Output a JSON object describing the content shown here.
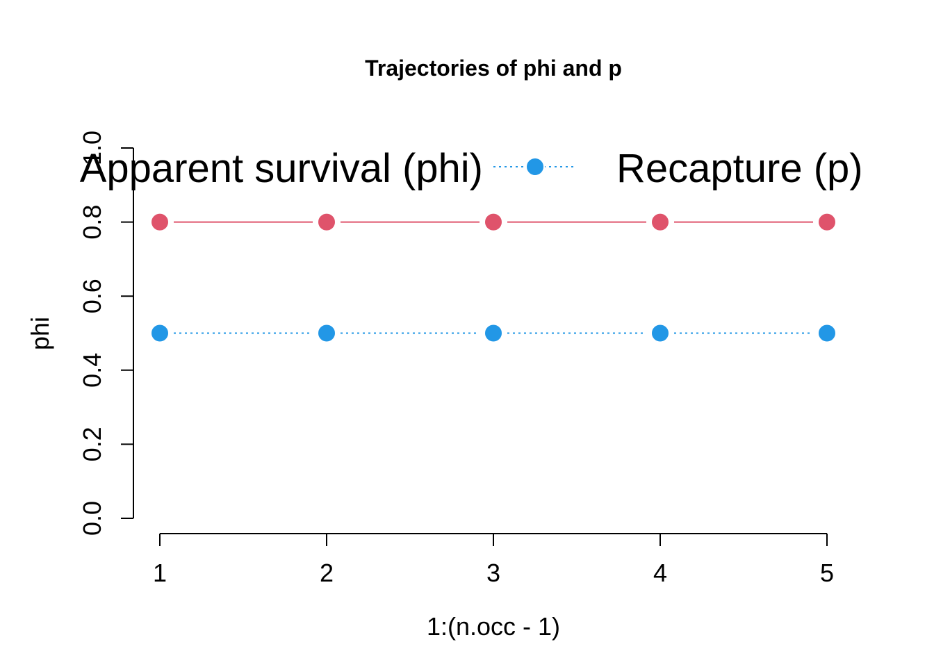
{
  "chart_data": {
    "type": "line",
    "title": "Trajectories of phi and p",
    "xlabel": "1:(n.occ - 1)",
    "ylabel": "phi",
    "xlim": [
      1,
      5
    ],
    "ylim": [
      0,
      1
    ],
    "x": [
      1,
      2,
      3,
      4,
      5
    ],
    "x_ticks": [
      "1",
      "2",
      "3",
      "4",
      "5"
    ],
    "y_ticks": [
      "0.0",
      "0.2",
      "0.4",
      "0.6",
      "0.8",
      "1.0"
    ],
    "series": [
      {
        "name": "Apparent survival (phi)",
        "values": [
          0.8,
          0.8,
          0.8,
          0.8,
          0.8
        ],
        "color": "#DF536B",
        "line": "solid",
        "marker": "filled-circle"
      },
      {
        "name": "Recapture (p)",
        "values": [
          0.5,
          0.5,
          0.5,
          0.5,
          0.5
        ],
        "color": "#2297E6",
        "line": "dotted",
        "marker": "filled-circle"
      }
    ],
    "legend": {
      "placement": "top",
      "horizontal": true
    }
  }
}
